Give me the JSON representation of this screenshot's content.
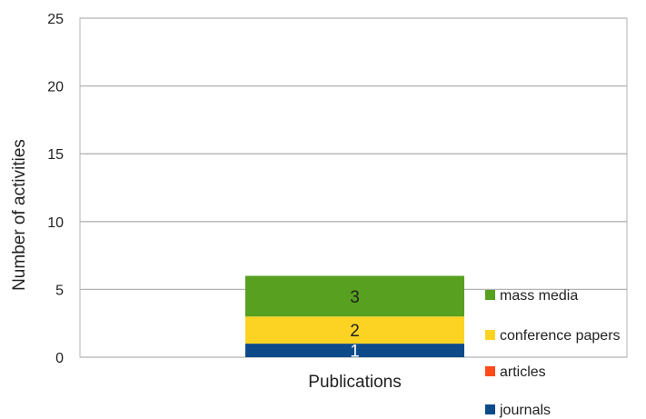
{
  "chart_data": {
    "type": "bar",
    "stacked": true,
    "categories": [
      "Publications"
    ],
    "series": [
      {
        "name": "journals",
        "values": [
          1
        ],
        "color": "#0d4a8a"
      },
      {
        "name": "articles",
        "values": [
          0
        ],
        "color": "#ff4a1a"
      },
      {
        "name": "conference papers",
        "values": [
          2
        ],
        "color": "#fdd323"
      },
      {
        "name": "mass media",
        "values": [
          3
        ],
        "color": "#57a020"
      }
    ],
    "data_labels": [
      "1",
      "",
      "2",
      "3"
    ],
    "data_label_colors": [
      "#ffffff",
      "#222222",
      "#222222",
      "#222222"
    ],
    "ylabel": "Number of activities",
    "xlabel": "",
    "ylim": [
      0,
      25
    ],
    "yticks": [
      "0",
      "5",
      "10",
      "15",
      "20",
      "25"
    ],
    "grid": true,
    "legend_position": "right"
  }
}
